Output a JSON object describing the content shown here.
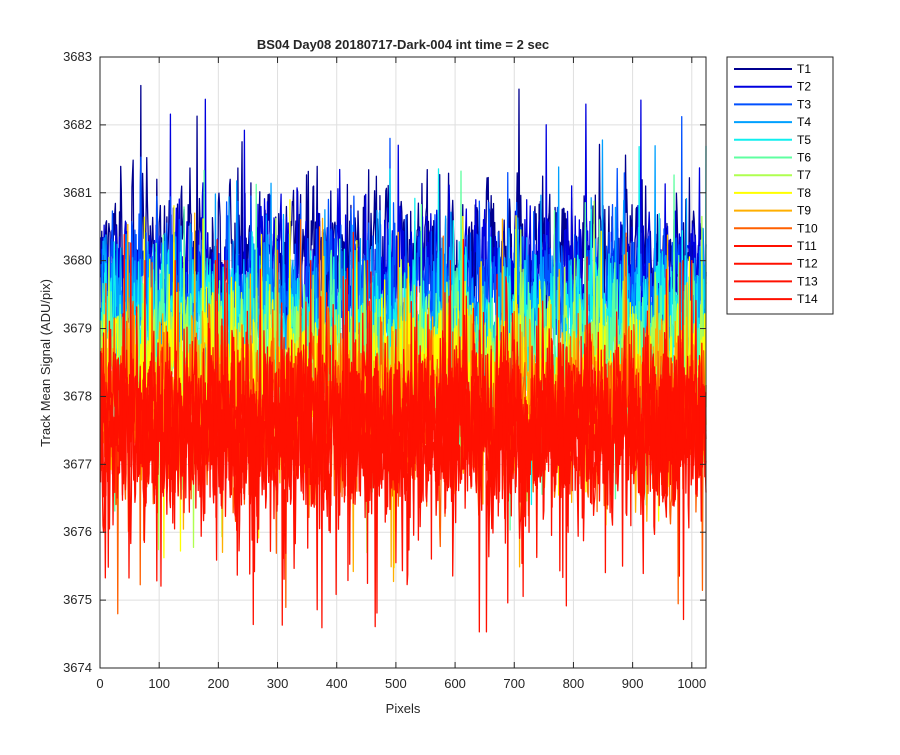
{
  "chart_data": {
    "type": "line",
    "title": "BS04 Day08 20180717-Dark-004 int time = 2 sec",
    "xlabel": "Pixels",
    "ylabel": "Track Mean Signal (ADU/pix)",
    "xlim": [
      0,
      1024
    ],
    "ylim": [
      3674,
      3683
    ],
    "x_ticks": [
      "0",
      "100",
      "200",
      "300",
      "400",
      "500",
      "600",
      "700",
      "800",
      "900",
      "1000"
    ],
    "y_ticks": [
      "3674",
      "3675",
      "3676",
      "3677",
      "3678",
      "3679",
      "3680",
      "3681",
      "3682",
      "3683"
    ],
    "grid": true,
    "legend_position": "outside-right",
    "x_range": [
      1,
      1024
    ],
    "series": [
      {
        "name": "T1",
        "color": "#00008f",
        "mean": 3680.1,
        "spread": 0.75,
        "max": 3682.6,
        "min": 3677.2
      },
      {
        "name": "T2",
        "color": "#0000df",
        "mean": 3679.8,
        "spread": 0.75,
        "max": 3682.6,
        "min": 3677.0
      },
      {
        "name": "T3",
        "color": "#0050ff",
        "mean": 3679.5,
        "spread": 0.75,
        "max": 3682.3,
        "min": 3676.8
      },
      {
        "name": "T4",
        "color": "#00a0ff",
        "mean": 3679.2,
        "spread": 0.75,
        "max": 3682.1,
        "min": 3676.5
      },
      {
        "name": "T5",
        "color": "#10efef",
        "mean": 3678.9,
        "spread": 0.8,
        "max": 3681.8,
        "min": 3675.3
      },
      {
        "name": "T6",
        "color": "#5fffa0",
        "mean": 3678.6,
        "spread": 0.8,
        "max": 3681.6,
        "min": 3675.1
      },
      {
        "name": "T7",
        "color": "#afff50",
        "mean": 3678.4,
        "spread": 0.8,
        "max": 3681.5,
        "min": 3674.8
      },
      {
        "name": "T8",
        "color": "#ffff00",
        "mean": 3678.2,
        "spread": 0.8,
        "max": 3681.4,
        "min": 3674.9
      },
      {
        "name": "T9",
        "color": "#ffaf00",
        "mean": 3677.9,
        "spread": 0.8,
        "max": 3681.2,
        "min": 3675.0
      },
      {
        "name": "T10",
        "color": "#ff6000",
        "mean": 3677.7,
        "spread": 0.85,
        "max": 3681.6,
        "min": 3674.7
      },
      {
        "name": "T11",
        "color": "#ff1000",
        "mean": 3677.5,
        "spread": 0.85,
        "max": 3680.5,
        "min": 3674.4
      },
      {
        "name": "T12",
        "color": "#ff1000",
        "mean": 3677.5,
        "spread": 0.85,
        "max": 3680.0,
        "min": 3674.5
      },
      {
        "name": "T13",
        "color": "#ff1000",
        "mean": 3677.5,
        "spread": 0.85,
        "max": 3680.0,
        "min": 3674.5
      },
      {
        "name": "T14",
        "color": "#ff1000",
        "mean": 3677.5,
        "spread": 0.85,
        "max": 3680.0,
        "min": 3674.4
      }
    ]
  }
}
